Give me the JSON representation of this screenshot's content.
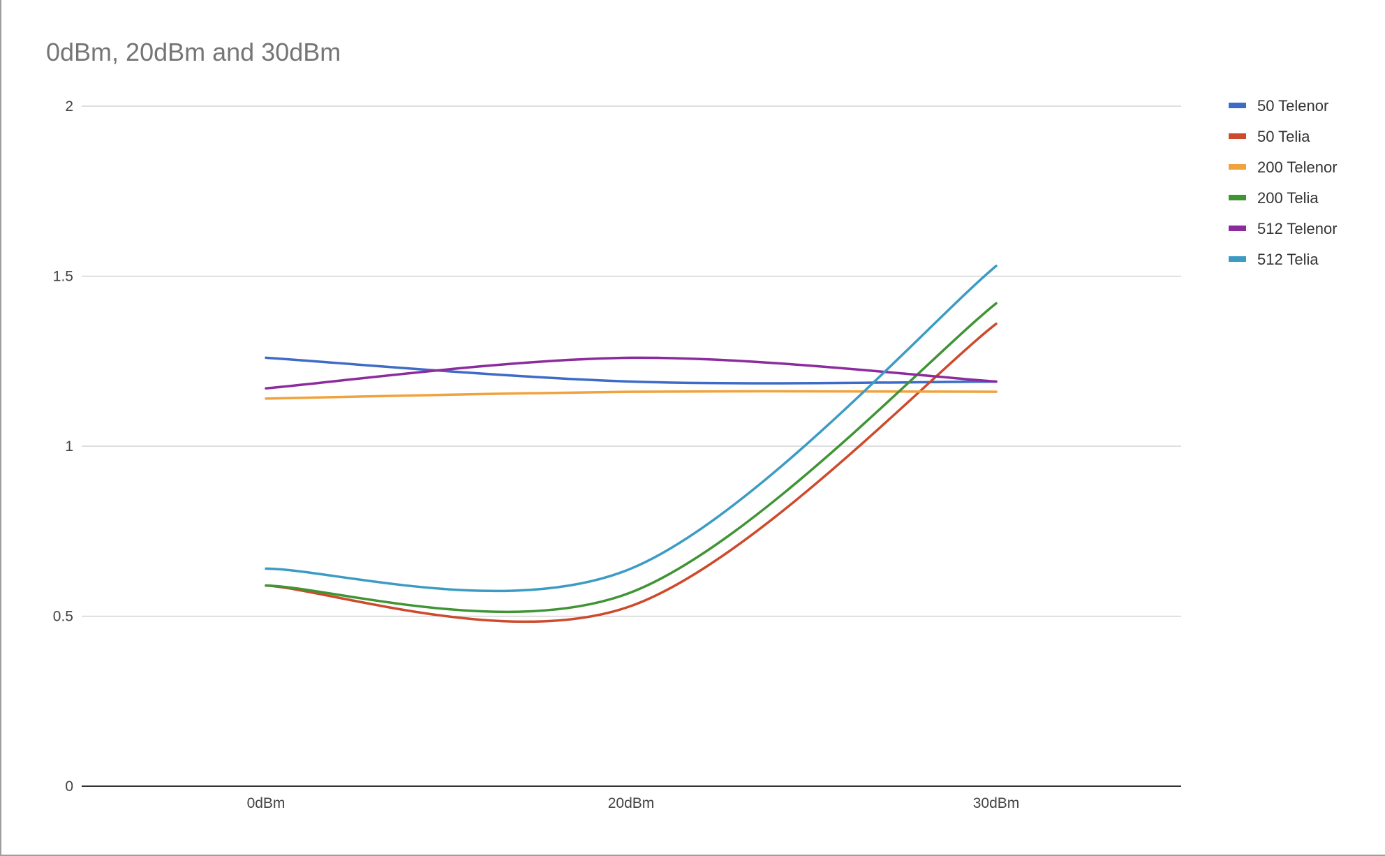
{
  "chart_data": {
    "type": "line",
    "title": "0dBm, 20dBm and 30dBm",
    "categories": [
      "0dBm",
      "20dBm",
      "30dBm"
    ],
    "ylim": [
      0,
      2
    ],
    "yticks": [
      "0",
      "0.5",
      "1",
      "1.5",
      "2"
    ],
    "grid": true,
    "legend_position": "right",
    "smooth": true,
    "series": [
      {
        "name": "50 Telenor",
        "color": "#3e6bc6",
        "values": [
          1.26,
          1.19,
          1.19
        ]
      },
      {
        "name": "50 Telia",
        "color": "#cd4a2c",
        "values": [
          0.59,
          0.53,
          1.36
        ]
      },
      {
        "name": "200 Telenor",
        "color": "#f0a23c",
        "values": [
          1.14,
          1.16,
          1.16
        ]
      },
      {
        "name": "200 Telia",
        "color": "#3f9434",
        "values": [
          0.59,
          0.57,
          1.42
        ]
      },
      {
        "name": "512 Telenor",
        "color": "#8c2b9e",
        "values": [
          1.17,
          1.26,
          1.19
        ]
      },
      {
        "name": "512 Telia",
        "color": "#3c9bc4",
        "values": [
          0.64,
          0.64,
          1.53
        ]
      }
    ]
  }
}
